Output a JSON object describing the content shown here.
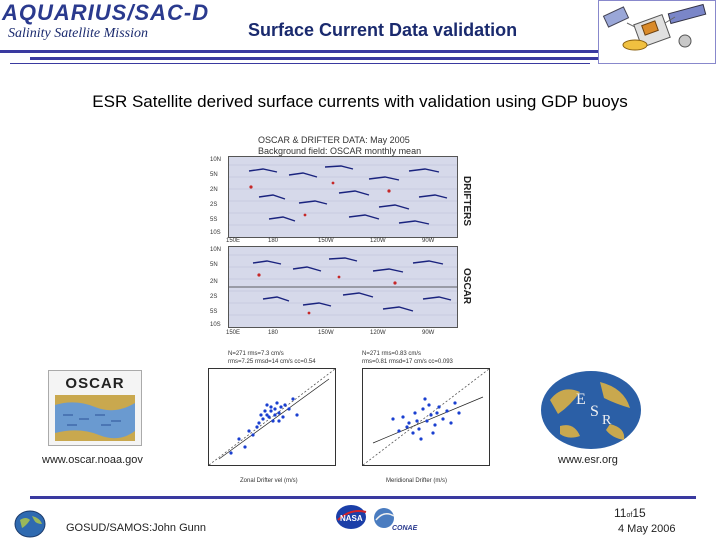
{
  "header": {
    "logo_text": "AQUARIUS/SAC-D",
    "mission": "Salinity Satellite Mission",
    "title": "Surface Current Data validation"
  },
  "subtitle": "ESR Satellite derived surface currents with validation using GDP  buoys",
  "figure": {
    "title_line1": "OSCAR & DRIFTER DATA: May 2005",
    "title_line2": "Background field: OSCAR monthly mean",
    "panel_top_label": "DRIFTERS",
    "panel_bottom_label": "OSCAR",
    "lat_ticks": [
      "10N",
      "5N",
      "2N",
      "2S",
      "5S",
      "10S"
    ],
    "lon_ticks": [
      "150E",
      "180",
      "150W",
      "120W",
      "90W"
    ],
    "scatter_left_stats": "N=271 rms=7.3 cm/s\nrms=7.25 rmsd=14 cm/s cc=0.54",
    "scatter_right_stats": "N=271 rms=0.83 cm/s\nrms=0.81 rmsd=17 cm/s cc=0.093",
    "scatter_left_xlabel": "Zonal Drifter vel (m/s)",
    "scatter_right_xlabel": "Meridional Drifter (m/s)"
  },
  "left_logo": {
    "word": "OSCAR",
    "url": "www.oscar.noaa.gov"
  },
  "right_logo": {
    "letters": "ESR",
    "url": "www.esr.org"
  },
  "footer": {
    "author": "GOSUD/SAMOS:John Gunn",
    "page_current": "11",
    "page_of": "of",
    "page_total": "15",
    "date": "4 May 2006"
  },
  "colors": {
    "brand_blue": "#2a3a8e",
    "line_blue": "#3a3aa0"
  }
}
